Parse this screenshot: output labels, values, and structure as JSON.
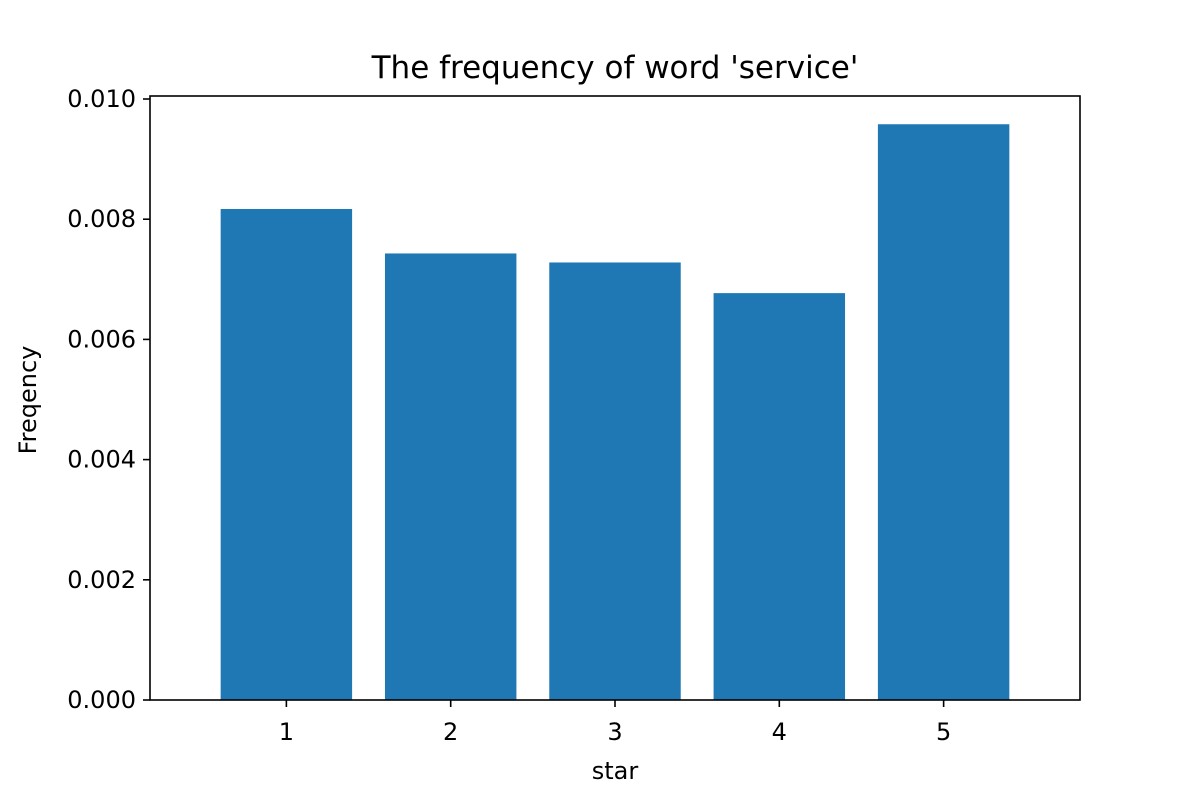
{
  "chart_data": {
    "type": "bar",
    "title": "The frequency of word 'service'",
    "xlabel": "star",
    "ylabel": "Freqency",
    "categories": [
      "1",
      "2",
      "3",
      "4",
      "5"
    ],
    "values": [
      0.00817,
      0.00743,
      0.00728,
      0.00677,
      0.00958
    ],
    "ylim": [
      0,
      0.01005
    ],
    "yticks": [
      "0.000",
      "0.002",
      "0.004",
      "0.006",
      "0.008",
      "0.010"
    ],
    "grid": false,
    "colors": {
      "bar": "#1f77b4"
    }
  }
}
